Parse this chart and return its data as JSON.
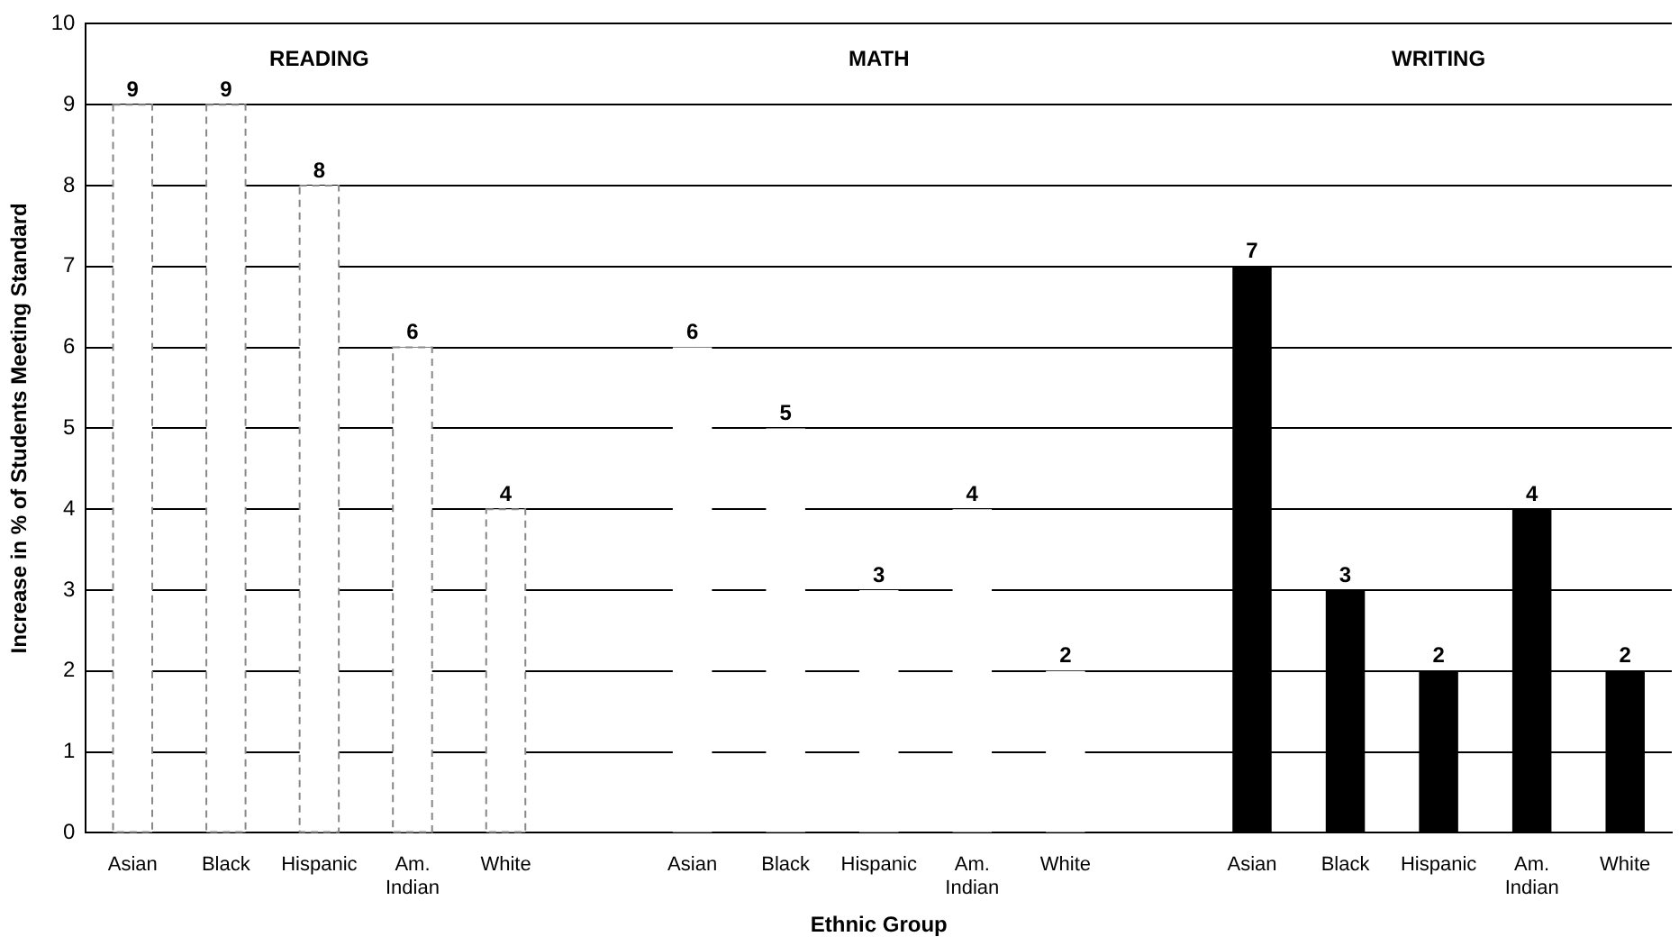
{
  "chart_data": {
    "type": "bar",
    "xlabel": "Ethnic Group",
    "ylabel": "Increase in % of Students Meeting Standard",
    "categories": [
      "Asian",
      "Black",
      "Hispanic",
      "Am. Indian",
      "White",
      null,
      "Asian",
      "Black",
      "Hispanic",
      "Am. Indian",
      "White",
      null,
      "Asian",
      "Black",
      "Hispanic",
      "Am. Indian",
      "White"
    ],
    "series": [
      {
        "color": "#ffffff",
        "line_style": "dashed",
        "values": [
          9,
          9,
          8,
          6,
          4,
          null,
          null,
          null,
          null,
          null,
          null,
          null,
          null,
          null,
          null,
          null,
          null
        ]
      },
      {
        "color": "#ffffff",
        "values": [
          null,
          null,
          null,
          null,
          null,
          null,
          6,
          5,
          3,
          4,
          2,
          null,
          null,
          null,
          null,
          null,
          null
        ]
      },
      {
        "color": "#000000",
        "values": [
          null,
          null,
          null,
          null,
          null,
          null,
          null,
          null,
          null,
          null,
          null,
          null,
          7,
          3,
          2,
          4,
          2
        ]
      }
    ],
    "ylim": [
      0,
      10
    ],
    "yticks": [
      0,
      1,
      2,
      3,
      4,
      5,
      6,
      7,
      8,
      9,
      10
    ],
    "annotations": [
      "READING",
      "MATH",
      "WRITING"
    ],
    "grid": "y",
    "legend": false,
    "data_labels": true
  }
}
